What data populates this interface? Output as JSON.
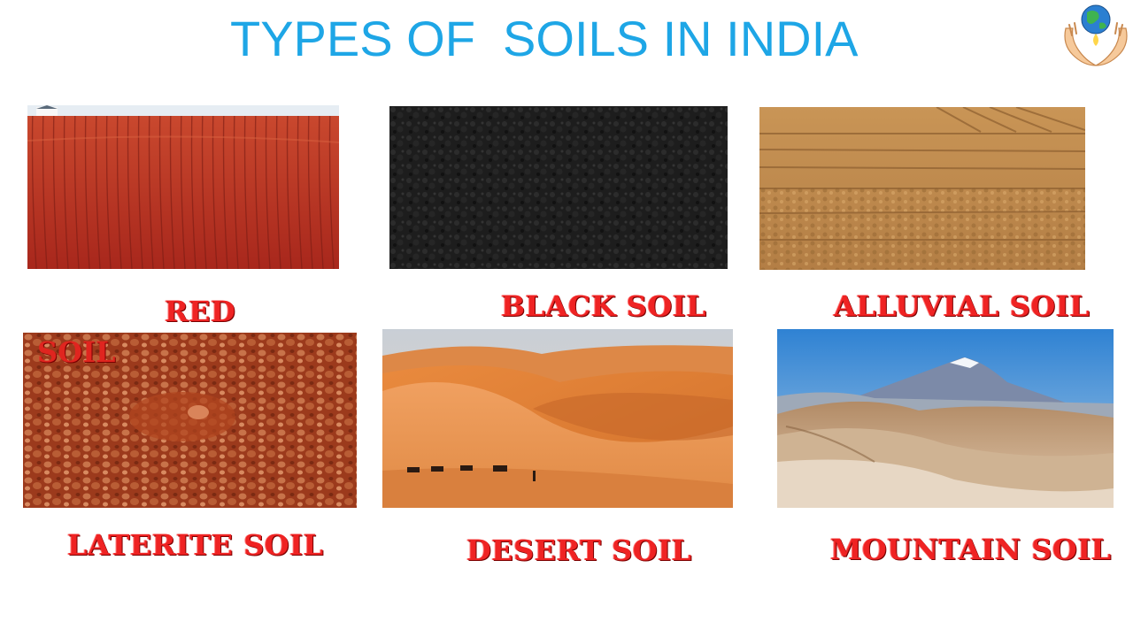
{
  "page": {
    "title": "TYPES OF  SOILS IN INDIA",
    "logo_icon": "globe-in-hands-icon"
  },
  "soils": [
    {
      "label_line1": "RED",
      "label_line2": "SOIL",
      "icon": "red-soil-field-image"
    },
    {
      "label": "BLACK SOIL",
      "icon": "black-soil-image"
    },
    {
      "label": "ALLUVIAL SOIL",
      "icon": "alluvial-furrows-image"
    },
    {
      "label": "LATERITE SOIL",
      "icon": "laterite-pebbles-image"
    },
    {
      "label": "DESERT SOIL",
      "icon": "desert-dunes-camels-image"
    },
    {
      "label": "MOUNTAIN SOIL",
      "icon": "mountain-peak-image"
    }
  ],
  "colors": {
    "title": "#1ea6e6",
    "label": "#ef2323"
  }
}
